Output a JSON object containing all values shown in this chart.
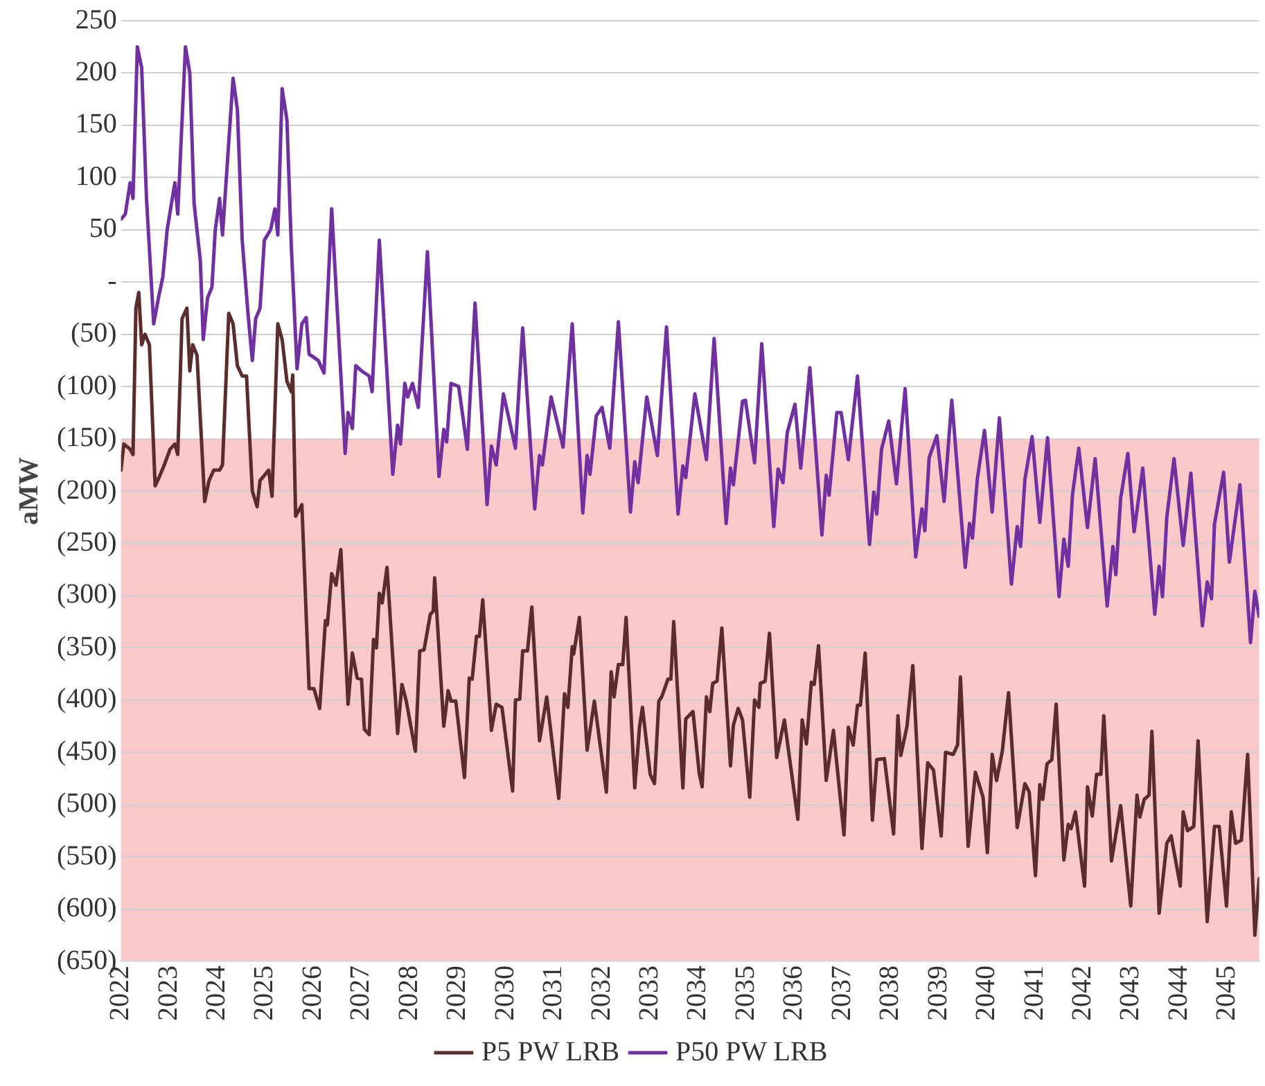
{
  "chart_data": {
    "type": "line",
    "ylabel": "aMW",
    "legend": "bottom",
    "grid": "y",
    "marker": "none",
    "line_style": "solid",
    "xlim": [
      2022,
      2045.66
    ],
    "xticks": [
      2022,
      2023,
      2024,
      2025,
      2026,
      2027,
      2028,
      2029,
      2030,
      2031,
      2032,
      2033,
      2034,
      2035,
      2036,
      2037,
      2038,
      2039,
      2040,
      2041,
      2042,
      2043,
      2044,
      2045
    ],
    "ylim": [
      -650,
      250
    ],
    "yticks": [
      {
        "value": -650,
        "label": "(650)"
      },
      {
        "value": -600,
        "label": "(600)"
      },
      {
        "value": -550,
        "label": "(550)"
      },
      {
        "value": -500,
        "label": "(500)"
      },
      {
        "value": -450,
        "label": "(450)"
      },
      {
        "value": -400,
        "label": "(400)"
      },
      {
        "value": -350,
        "label": "(350)"
      },
      {
        "value": -300,
        "label": "(300)"
      },
      {
        "value": -250,
        "label": "(250)"
      },
      {
        "value": -200,
        "label": "(200)"
      },
      {
        "value": -150,
        "label": "(150)"
      },
      {
        "value": -100,
        "label": "(100)"
      },
      {
        "value": -50,
        "label": "(50)"
      },
      {
        "value": 0,
        "label": "-"
      },
      50,
      100,
      150,
      200,
      250
    ],
    "bands": [
      {
        "axis": "y",
        "from": -650,
        "to": -150,
        "color": "#f9c8c8"
      }
    ],
    "series": [
      {
        "name": "P5 PW LRB",
        "color": "#5b2c2c",
        "x": [
          2022.0,
          2022.06,
          2022.19,
          2022.25,
          2022.31,
          2022.37,
          2022.43,
          2022.5,
          2022.59,
          2022.71,
          2022.81,
          2022.9,
          2023.02,
          2023.12,
          2023.18,
          2023.27,
          2023.37,
          2023.43,
          2023.49,
          2023.58,
          2023.74,
          2023.83,
          2023.93,
          2024.05,
          2024.11,
          2024.24,
          2024.33,
          2024.42,
          2024.52,
          2024.61,
          2024.73,
          2024.83,
          2024.89,
          2024.98,
          2025.07,
          2025.14,
          2025.26,
          2025.35,
          2025.45,
          2025.54,
          2025.57,
          2025.63,
          2025.76,
          2025.91,
          2026.01,
          2026.13,
          2026.25,
          2026.29,
          2026.38,
          2026.47,
          2026.57,
          2026.72,
          2026.81,
          2026.91,
          2027.0,
          2027.06,
          2027.16,
          2027.25,
          2027.31,
          2027.37,
          2027.43,
          2027.53,
          2027.75,
          2027.84,
          2027.93,
          2028.12,
          2028.21,
          2028.3,
          2028.43,
          2028.49,
          2028.52,
          2028.71,
          2028.8,
          2028.86,
          2028.96,
          2029.14,
          2029.24,
          2029.3,
          2029.39,
          2029.45,
          2029.52,
          2029.7,
          2029.8,
          2029.92,
          2030.14,
          2030.2,
          2030.29,
          2030.35,
          2030.45,
          2030.54,
          2030.7,
          2030.85,
          2031.1,
          2031.22,
          2031.29,
          2031.38,
          2031.41,
          2031.53,
          2031.69,
          2031.84,
          2032.09,
          2032.19,
          2032.25,
          2032.34,
          2032.43,
          2032.5,
          2032.68,
          2032.78,
          2032.84,
          2033.0,
          2033.09,
          2033.18,
          2033.24,
          2033.37,
          2033.43,
          2033.49,
          2033.68,
          2033.74,
          2033.89,
          2034.02,
          2034.08,
          2034.17,
          2034.24,
          2034.3,
          2034.39,
          2034.49,
          2034.67,
          2034.73,
          2034.83,
          2034.92,
          2035.07,
          2035.17,
          2035.26,
          2035.29,
          2035.39,
          2035.48,
          2035.63,
          2035.79,
          2036.07,
          2036.16,
          2036.25,
          2036.35,
          2036.41,
          2036.5,
          2036.66,
          2036.81,
          2037.03,
          2037.12,
          2037.22,
          2037.31,
          2037.37,
          2037.47,
          2037.62,
          2037.71,
          2037.87,
          2038.06,
          2038.15,
          2038.21,
          2038.34,
          2038.46,
          2038.65,
          2038.77,
          2038.89,
          2039.05,
          2039.14,
          2039.3,
          2039.39,
          2039.45,
          2039.61,
          2039.76,
          2039.92,
          2040.01,
          2040.11,
          2040.2,
          2040.32,
          2040.45,
          2040.63,
          2040.79,
          2040.88,
          2041.01,
          2041.1,
          2041.16,
          2041.25,
          2041.35,
          2041.44,
          2041.6,
          2041.69,
          2041.75,
          2041.84,
          2042.03,
          2042.09,
          2042.19,
          2042.28,
          2042.37,
          2042.43,
          2042.59,
          2042.78,
          2042.99,
          2043.12,
          2043.18,
          2043.27,
          2043.37,
          2043.43,
          2043.58,
          2043.74,
          2043.83,
          2044.02,
          2044.08,
          2044.17,
          2044.3,
          2044.39,
          2044.58,
          2044.73,
          2044.83,
          2044.98,
          2045.08,
          2045.17,
          2045.29,
          2045.42,
          2045.57,
          2045.66
        ],
        "values": [
          -180,
          -155,
          -160,
          -165,
          -25,
          -10,
          -60,
          -50,
          -60,
          -195,
          -185,
          -175,
          -160,
          -155,
          -165,
          -35,
          -25,
          -85,
          -60,
          -70,
          -210,
          -190,
          -180,
          -180,
          -175,
          -30,
          -40,
          -80,
          -90,
          -90,
          -200,
          -215,
          -190,
          -185,
          -180,
          -205,
          -40,
          -55,
          -95,
          -105,
          -89,
          -224,
          -213,
          -389,
          -389,
          -408,
          -324,
          -328,
          -279,
          -290,
          -256,
          -404,
          -355,
          -379,
          -380,
          -428,
          -433,
          -342,
          -350,
          -298,
          -307,
          -273,
          -432,
          -385,
          -401,
          -449,
          -353,
          -352,
          -318,
          -315,
          -283,
          -425,
          -391,
          -401,
          -401,
          -474,
          -379,
          -380,
          -339,
          -339,
          -304,
          -429,
          -404,
          -407,
          -487,
          -400,
          -399,
          -353,
          -353,
          -311,
          -439,
          -397,
          -494,
          -394,
          -407,
          -349,
          -356,
          -321,
          -448,
          -401,
          -488,
          -373,
          -397,
          -366,
          -366,
          -321,
          -484,
          -425,
          -407,
          -471,
          -480,
          -401,
          -397,
          -380,
          -380,
          -325,
          -484,
          -418,
          -411,
          -470,
          -483,
          -397,
          -411,
          -384,
          -382,
          -331,
          -463,
          -424,
          -408,
          -419,
          -493,
          -400,
          -407,
          -384,
          -382,
          -336,
          -455,
          -419,
          -514,
          -419,
          -442,
          -383,
          -385,
          -348,
          -477,
          -429,
          -529,
          -426,
          -443,
          -405,
          -405,
          -355,
          -515,
          -457,
          -456,
          -528,
          -415,
          -453,
          -425,
          -367,
          -542,
          -460,
          -467,
          -530,
          -450,
          -452,
          -443,
          -378,
          -540,
          -469,
          -493,
          -546,
          -452,
          -477,
          -449,
          -393,
          -522,
          -480,
          -488,
          -568,
          -481,
          -495,
          -461,
          -457,
          -404,
          -553,
          -519,
          -523,
          -507,
          -578,
          -483,
          -511,
          -471,
          -471,
          -415,
          -554,
          -501,
          -597,
          -491,
          -512,
          -495,
          -491,
          -430,
          -604,
          -537,
          -530,
          -578,
          -507,
          -525,
          -521,
          -439,
          -612,
          -521,
          -521,
          -597,
          -507,
          -537,
          -534,
          -452,
          -625,
          -571
        ]
      },
      {
        "name": "P50 PW LRB",
        "color": "#7030a0",
        "x": [
          2022.0,
          2022.09,
          2022.19,
          2022.25,
          2022.34,
          2022.43,
          2022.53,
          2022.68,
          2022.78,
          2022.87,
          2022.96,
          2023.12,
          2023.18,
          2023.34,
          2023.43,
          2023.52,
          2023.65,
          2023.71,
          2023.8,
          2023.89,
          2023.96,
          2024.05,
          2024.11,
          2024.33,
          2024.42,
          2024.52,
          2024.64,
          2024.73,
          2024.8,
          2024.89,
          2024.98,
          2025.11,
          2025.2,
          2025.26,
          2025.35,
          2025.45,
          2025.54,
          2025.66,
          2025.76,
          2025.85,
          2025.91,
          2026.1,
          2026.22,
          2026.38,
          2026.66,
          2026.72,
          2026.81,
          2026.88,
          2027.0,
          2027.16,
          2027.22,
          2027.37,
          2027.65,
          2027.75,
          2027.81,
          2027.9,
          2027.96,
          2028.06,
          2028.18,
          2028.37,
          2028.61,
          2028.71,
          2028.77,
          2028.86,
          2029.02,
          2029.2,
          2029.36,
          2029.61,
          2029.7,
          2029.8,
          2029.95,
          2030.2,
          2030.35,
          2030.6,
          2030.7,
          2030.76,
          2030.94,
          2031.19,
          2031.38,
          2031.6,
          2031.69,
          2031.75,
          2031.88,
          2032.0,
          2032.16,
          2032.34,
          2032.59,
          2032.68,
          2032.75,
          2032.93,
          2033.15,
          2033.34,
          2033.58,
          2033.68,
          2033.74,
          2033.93,
          2034.17,
          2034.33,
          2034.58,
          2034.67,
          2034.73,
          2034.92,
          2034.98,
          2035.17,
          2035.32,
          2035.57,
          2035.66,
          2035.76,
          2035.85,
          2036.01,
          2036.13,
          2036.32,
          2036.57,
          2036.66,
          2036.72,
          2036.88,
          2036.97,
          2037.12,
          2037.31,
          2037.56,
          2037.65,
          2037.71,
          2037.81,
          2037.96,
          2038.12,
          2038.3,
          2038.52,
          2038.65,
          2038.71,
          2038.8,
          2038.96,
          2039.11,
          2039.27,
          2039.55,
          2039.64,
          2039.7,
          2039.8,
          2039.95,
          2040.11,
          2040.26,
          2040.51,
          2040.63,
          2040.7,
          2040.79,
          2040.94,
          2041.1,
          2041.26,
          2041.5,
          2041.6,
          2041.69,
          2041.78,
          2041.91,
          2042.09,
          2042.25,
          2042.5,
          2042.62,
          2042.68,
          2042.78,
          2042.93,
          2043.06,
          2043.24,
          2043.49,
          2043.58,
          2043.65,
          2043.74,
          2043.89,
          2044.08,
          2044.24,
          2044.48,
          2044.58,
          2044.67,
          2044.73,
          2044.92,
          2045.04,
          2045.26,
          2045.48,
          2045.57,
          2045.66
        ],
        "values": [
          60,
          65,
          95,
          80,
          225,
          205,
          80,
          -40,
          -15,
          5,
          50,
          95,
          65,
          225,
          200,
          75,
          20,
          -55,
          -15,
          -5,
          50,
          80,
          45,
          195,
          165,
          40,
          -30,
          -75,
          -35,
          -25,
          40,
          50,
          70,
          45,
          185,
          155,
          35,
          -83,
          -40,
          -34,
          -69,
          -75,
          -87,
          70,
          -164,
          -125,
          -140,
          -80,
          -85,
          -90,
          -105,
          40,
          -184,
          -137,
          -155,
          -97,
          -110,
          -97,
          -120,
          29,
          -186,
          -141,
          -153,
          -97,
          -100,
          -160,
          -20,
          -213,
          -157,
          -175,
          -107,
          -159,
          -44,
          -217,
          -166,
          -175,
          -110,
          -158,
          -40,
          -221,
          -166,
          -184,
          -128,
          -120,
          -159,
          -38,
          -220,
          -172,
          -192,
          -110,
          -166,
          -43,
          -222,
          -176,
          -187,
          -107,
          -170,
          -54,
          -231,
          -178,
          -194,
          -114,
          -113,
          -173,
          -59,
          -234,
          -179,
          -192,
          -144,
          -117,
          -178,
          -82,
          -242,
          -185,
          -204,
          -125,
          -125,
          -170,
          -90,
          -251,
          -201,
          -222,
          -160,
          -133,
          -193,
          -102,
          -263,
          -217,
          -238,
          -168,
          -147,
          -210,
          -113,
          -273,
          -231,
          -245,
          -189,
          -142,
          -220,
          -130,
          -289,
          -234,
          -253,
          -189,
          -148,
          -230,
          -149,
          -301,
          -246,
          -272,
          -203,
          -159,
          -235,
          -169,
          -310,
          -253,
          -280,
          -207,
          -164,
          -239,
          -178,
          -318,
          -272,
          -301,
          -225,
          -169,
          -252,
          -183,
          -329,
          -287,
          -303,
          -232,
          -182,
          -268,
          -194,
          -345,
          -296,
          -320
        ]
      }
    ]
  }
}
